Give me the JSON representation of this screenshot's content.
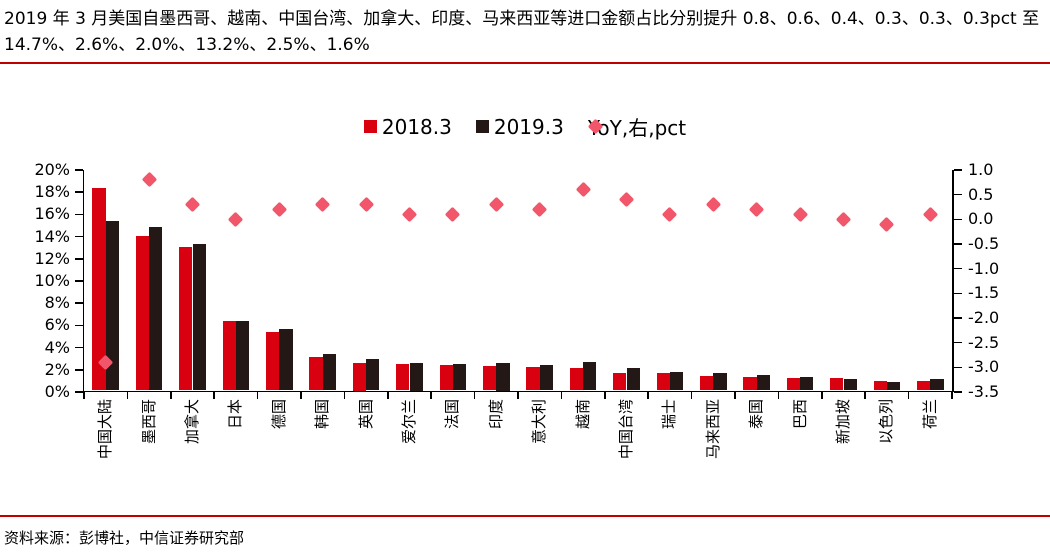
{
  "page": {
    "title": "2019 年 3 月美国自墨西哥、越南、中国台湾、加拿大、印度、马来西亚等进口金额占比分别提升 0.8、0.6、0.4、0.3、0.3、0.3pct 至 14.7%、2.6%、2.0%、13.2%、2.5%、1.6%",
    "source": "资料来源：彭博社，中信证券研究部"
  },
  "colors": {
    "bar_2018": "#d9000f",
    "bar_2019": "#231815",
    "yoy_diamond": "#f2566a",
    "divider_red": "#c00000",
    "axis": "#000000",
    "text": "#000000"
  },
  "chart_data": {
    "type": "bar",
    "legend_position": "top",
    "grid": false,
    "categories": [
      "中国大陆",
      "墨西哥",
      "加拿大",
      "日本",
      "德国",
      "韩国",
      "英国",
      "爱尔兰",
      "法国",
      "印度",
      "意大利",
      "越南",
      "中国台湾",
      "瑞士",
      "马来西亚",
      "泰国",
      "巴西",
      "新加坡",
      "以色列",
      "荷兰"
    ],
    "series": [
      {
        "name": "2018.3",
        "type": "bar",
        "axis": "left",
        "marker": "square",
        "color": "#d9000f",
        "values": [
          18.2,
          13.9,
          12.9,
          6.3,
          5.3,
          3.0,
          2.5,
          2.4,
          2.3,
          2.2,
          2.1,
          2.0,
          1.6,
          1.6,
          1.3,
          1.2,
          1.1,
          1.1,
          0.9,
          0.9
        ]
      },
      {
        "name": "2019.3",
        "type": "bar",
        "axis": "left",
        "marker": "square",
        "color": "#231815",
        "values": [
          15.3,
          14.7,
          13.2,
          6.3,
          5.5,
          3.3,
          2.8,
          2.5,
          2.4,
          2.5,
          2.3,
          2.6,
          2.0,
          1.7,
          1.6,
          1.4,
          1.2,
          1.0,
          0.8,
          1.0
        ]
      },
      {
        "name": "YoY,右,pct",
        "type": "scatter",
        "axis": "right",
        "marker": "diamond",
        "color": "#f2566a",
        "values": [
          -2.9,
          0.8,
          0.3,
          0.0,
          0.2,
          0.3,
          0.3,
          0.1,
          0.1,
          0.3,
          0.2,
          0.6,
          0.4,
          0.1,
          0.3,
          0.2,
          0.1,
          0.0,
          -0.1,
          0.1
        ]
      }
    ],
    "left_axis": {
      "min": 0,
      "max": 20,
      "tick_labels": [
        "20%",
        "18%",
        "16%",
        "14%",
        "12%",
        "10%",
        "8%",
        "6%",
        "4%",
        "2%",
        "0%"
      ]
    },
    "right_axis": {
      "min": -3.5,
      "max": 1.0,
      "tick_labels": [
        "1.0",
        "0.5",
        "0.0",
        "-0.5",
        "-1.0",
        "-1.5",
        "-2.0",
        "-2.5",
        "-3.0",
        "-3.5"
      ]
    }
  }
}
